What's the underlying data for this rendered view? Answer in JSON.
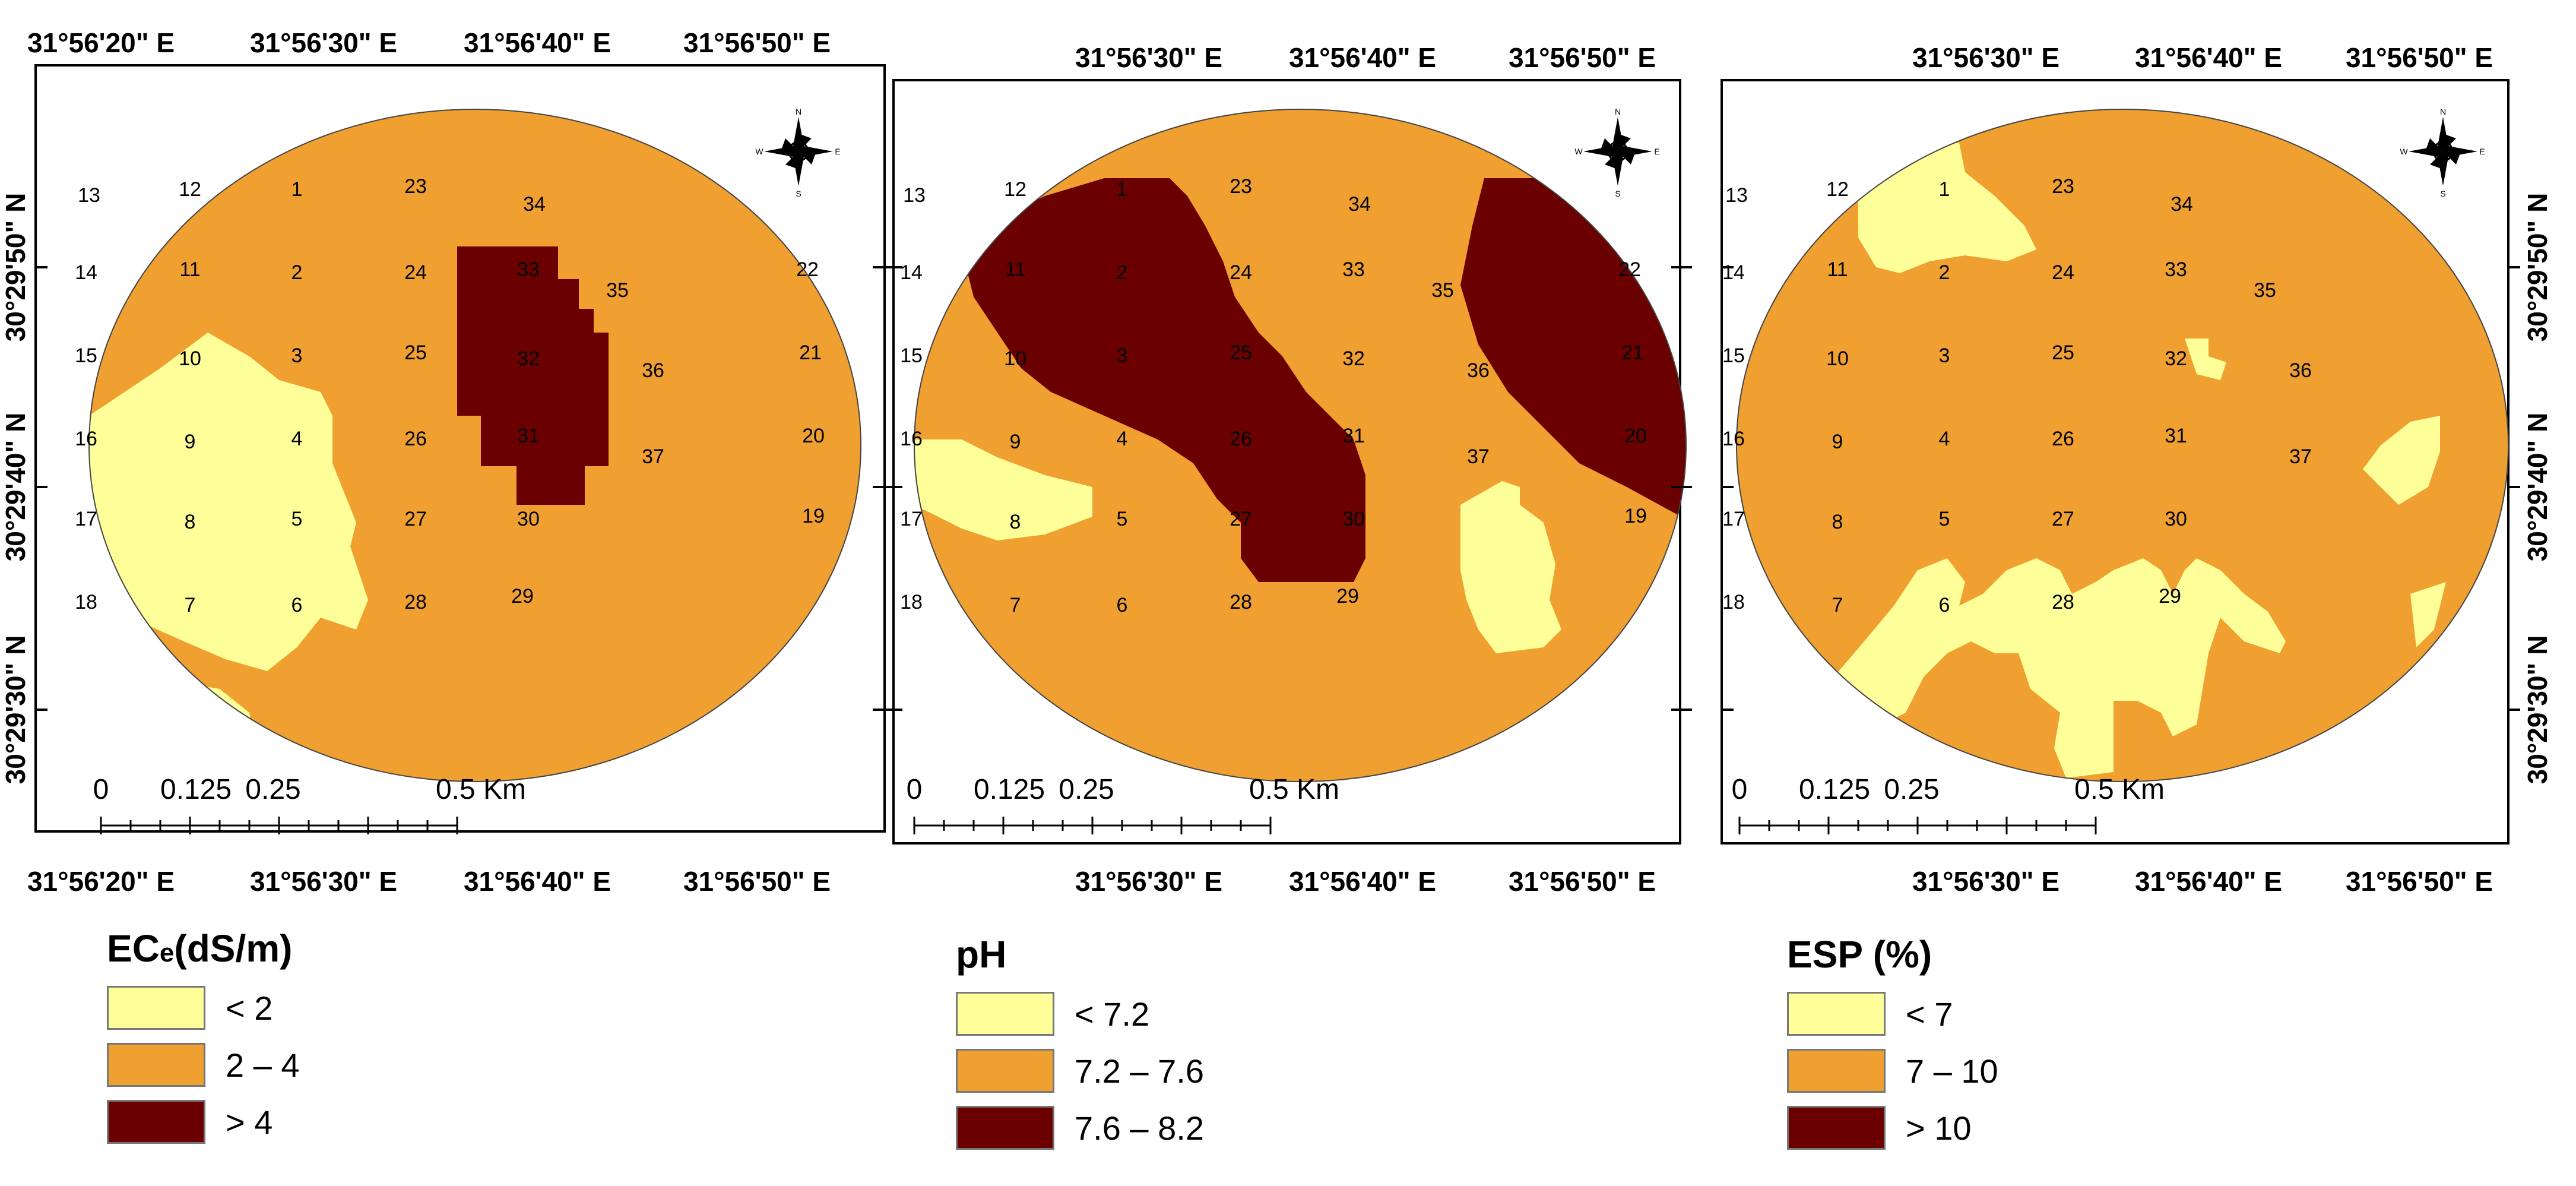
{
  "colors": {
    "low": "#ffff99",
    "mid": "#f0a030",
    "high": "#6b0000",
    "frame": "#000000",
    "background": "#ffffff"
  },
  "panels": [
    {
      "id": "ece",
      "top_lon_labels": [
        "31°56'20\" E",
        "31°56'30\" E",
        "31°56'40\" E",
        "31°56'50\" E"
      ],
      "bottom_lon_labels": [
        "31°56'20\" E",
        "31°56'30\" E",
        "31°56'40\" E",
        "31°56'50\" E"
      ],
      "lat_labels": [
        "30°29'50\" N",
        "30°29'40\" N",
        "30°29'30\" N"
      ],
      "lat_side": "left"
    },
    {
      "id": "ph",
      "top_lon_labels": [
        "31°56'30\" E",
        "31°56'40\" E",
        "31°56'50\" E"
      ],
      "bottom_lon_labels": [
        "31°56'30\" E",
        "31°56'40\" E",
        "31°56'50\" E"
      ],
      "lat_labels": [],
      "lat_side": "none"
    },
    {
      "id": "esp",
      "top_lon_labels": [
        "31°56'30\" E",
        "31°56'40\" E",
        "31°56'50\" E"
      ],
      "bottom_lon_labels": [
        "31°56'30\" E",
        "31°56'40\" E",
        "31°56'50\" E"
      ],
      "lat_labels": [
        "30°29'50\" N",
        "30°29'40\" N",
        "30°29'30\" N"
      ],
      "lat_side": "right"
    }
  ],
  "scale_bar": {
    "ticks": [
      "0",
      "0.125",
      "0.25",
      "0.5 Km"
    ]
  },
  "sample_points": [
    "1",
    "2",
    "3",
    "4",
    "5",
    "6",
    "7",
    "8",
    "9",
    "10",
    "11",
    "12",
    "13",
    "14",
    "15",
    "16",
    "17",
    "18",
    "19",
    "20",
    "21",
    "22",
    "23",
    "24",
    "25",
    "26",
    "27",
    "28",
    "29",
    "30",
    "31",
    "32",
    "33",
    "34",
    "35",
    "36",
    "37"
  ],
  "compass": {
    "n": "N",
    "s": "S",
    "e": "E",
    "w": "W"
  },
  "legends": [
    {
      "title_main": "EC",
      "title_sub": "e",
      "title_rest": "(dS/m)",
      "items": [
        {
          "label": "< 2",
          "color": "#ffff99"
        },
        {
          "label": "2 – 4",
          "color": "#f0a030"
        },
        {
          "label": "> 4",
          "color": "#6b0000"
        }
      ]
    },
    {
      "title_main": "pH",
      "title_sub": "",
      "title_rest": "",
      "items": [
        {
          "label": "< 7.2",
          "color": "#ffff99"
        },
        {
          "label": "7.2 – 7.6",
          "color": "#f0a030"
        },
        {
          "label": "7.6 – 8.2",
          "color": "#6b0000"
        }
      ]
    },
    {
      "title_main": "ESP (%)",
      "title_sub": "",
      "title_rest": "",
      "items": [
        {
          "label": "< 7",
          "color": "#ffff99"
        },
        {
          "label": "7 – 10",
          "color": "#f0a030"
        },
        {
          "label": "> 10",
          "color": "#6b0000"
        }
      ]
    }
  ]
}
